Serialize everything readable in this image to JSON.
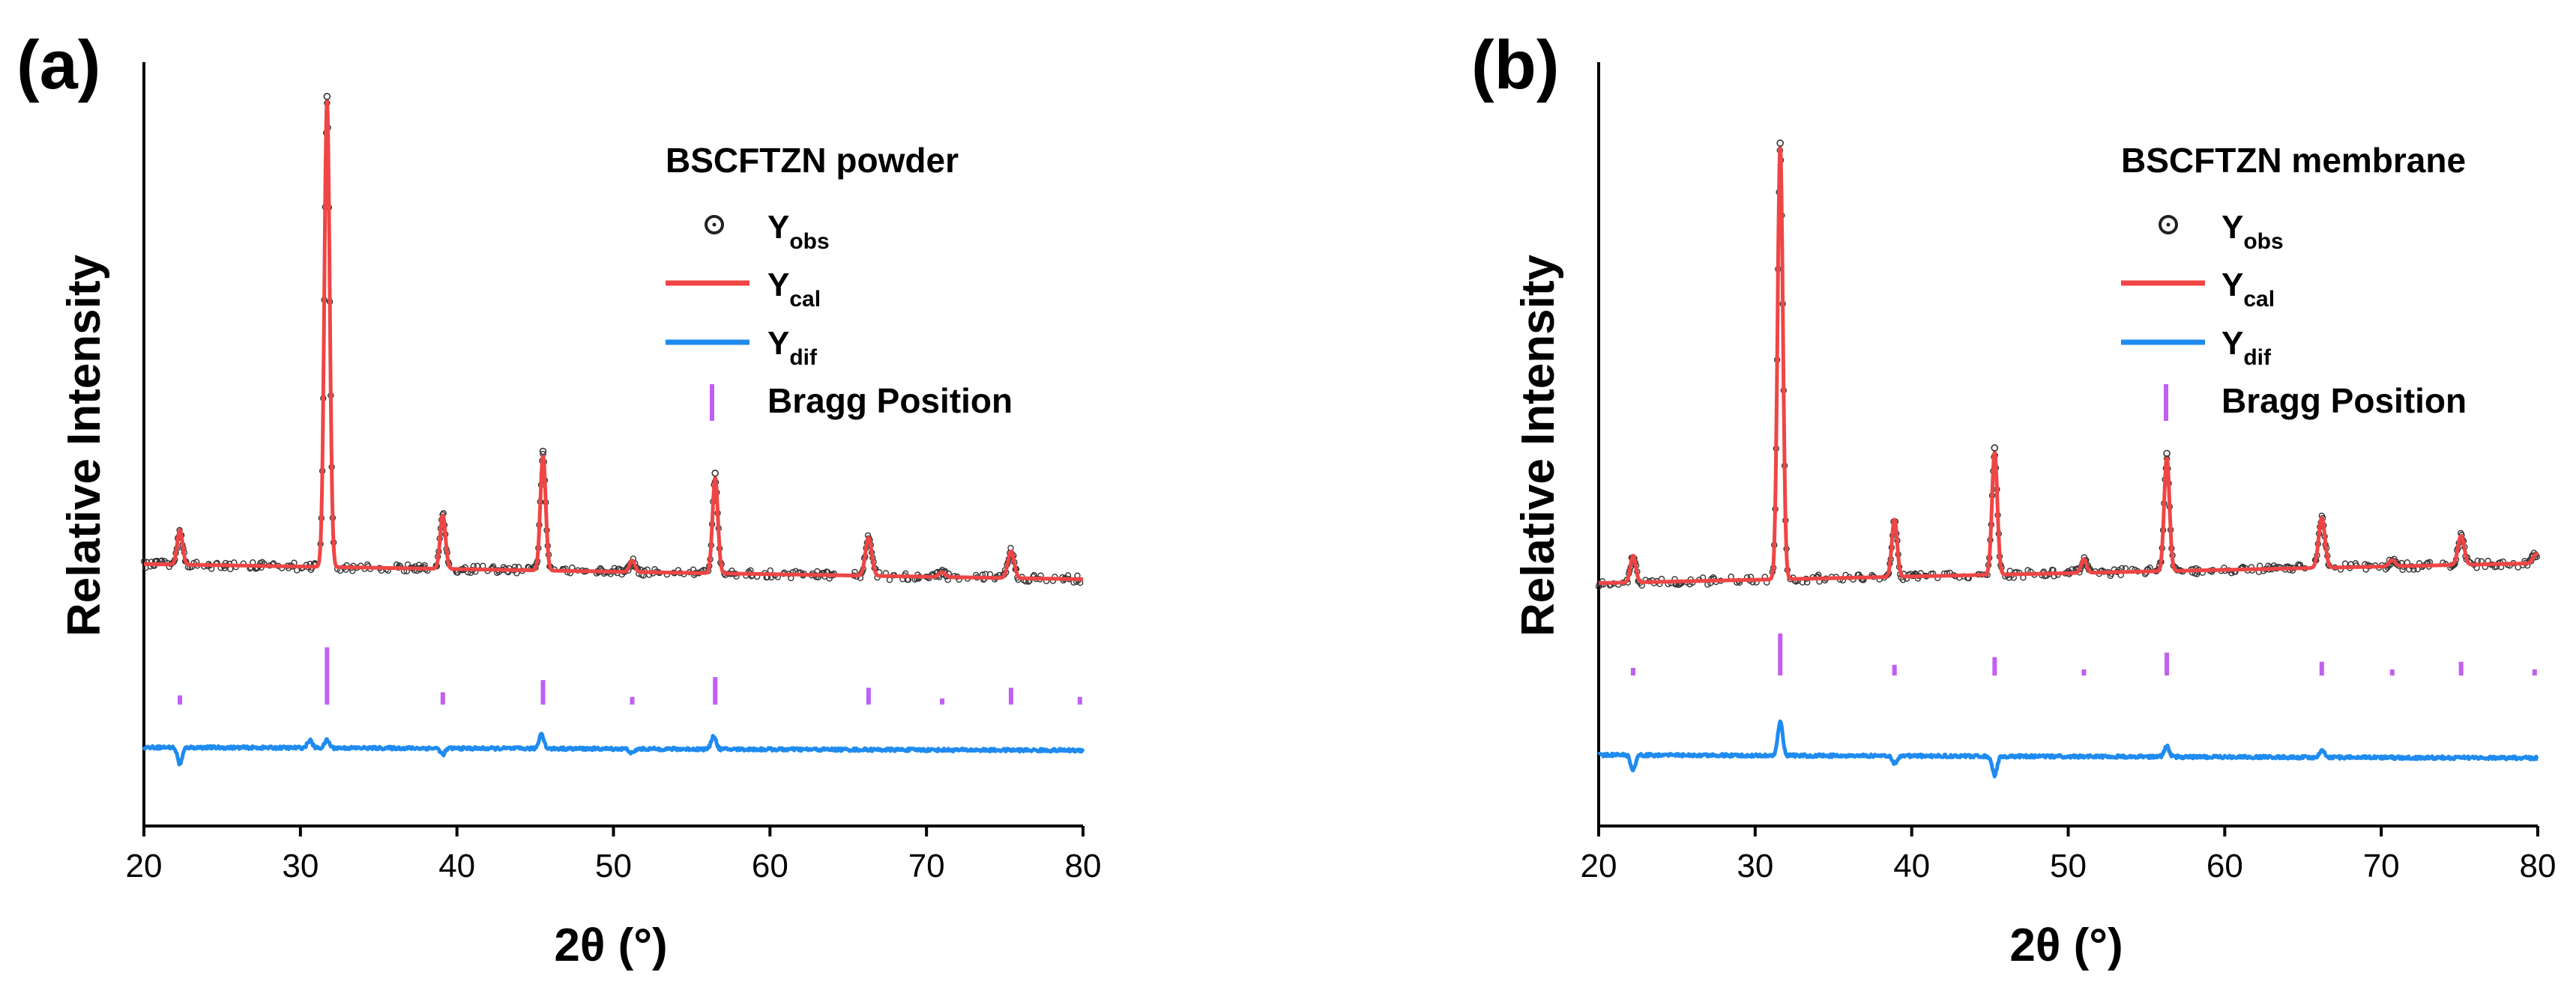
{
  "chart_data": [
    {
      "type": "line",
      "panel_label": "(a)",
      "title": "BSCFTZN powder",
      "xlabel": "2θ (°)",
      "ylabel": "Relative Intensity",
      "xlim": [
        20,
        80
      ],
      "ylim": [
        0,
        1
      ],
      "xticks": [
        "20",
        "30",
        "40",
        "50",
        "60",
        "70",
        "80"
      ],
      "grid": false,
      "legend_position": "top-right",
      "legend": [
        {
          "base": "Y",
          "sub": "obs",
          "marker": "open-circle",
          "color": "#222222"
        },
        {
          "base": "Y",
          "sub": "cal",
          "marker": "line",
          "color": "#f04545"
        },
        {
          "base": "Y",
          "sub": "dif",
          "marker": "line",
          "color": "#1f8bf0"
        },
        {
          "label": "Bragg Position",
          "marker": "tick",
          "color": "#c060f0"
        }
      ],
      "background": {
        "start": 0.343,
        "end": 0.323
      },
      "peaks": [
        {
          "x": 22.3,
          "height": 0.045,
          "width": 0.17
        },
        {
          "x": 31.7,
          "height": 0.61,
          "width": 0.17
        },
        {
          "x": 39.1,
          "height": 0.07,
          "width": 0.17
        },
        {
          "x": 45.5,
          "height": 0.15,
          "width": 0.17
        },
        {
          "x": 51.2,
          "height": 0.015,
          "width": 0.17
        },
        {
          "x": 56.5,
          "height": 0.125,
          "width": 0.17
        },
        {
          "x": 66.3,
          "height": 0.05,
          "width": 0.2
        },
        {
          "x": 71.0,
          "height": 0.006,
          "width": 0.2
        },
        {
          "x": 75.4,
          "height": 0.035,
          "width": 0.2
        }
      ],
      "bragg_positions": [
        {
          "x": 22.3,
          "size": 0.012
        },
        {
          "x": 31.7,
          "size": 0.075
        },
        {
          "x": 39.1,
          "size": 0.016
        },
        {
          "x": 45.5,
          "size": 0.032
        },
        {
          "x": 51.2,
          "size": 0.01
        },
        {
          "x": 56.5,
          "size": 0.036
        },
        {
          "x": 66.3,
          "size": 0.022
        },
        {
          "x": 71.0,
          "size": 0.008
        },
        {
          "x": 75.4,
          "size": 0.022
        },
        {
          "x": 79.8,
          "size": 0.01
        }
      ],
      "bragg_baseline": 0.159,
      "difference": {
        "baseline": 0.103,
        "features": [
          {
            "x": 22.3,
            "amp": -0.022
          },
          {
            "x": 30.6,
            "amp": 0.01
          },
          {
            "x": 31.7,
            "amp": 0.01
          },
          {
            "x": 39.1,
            "amp": -0.008
          },
          {
            "x": 45.4,
            "amp": 0.02
          },
          {
            "x": 51.2,
            "amp": -0.006
          },
          {
            "x": 56.4,
            "amp": 0.018
          }
        ]
      }
    },
    {
      "type": "line",
      "panel_label": "(b)",
      "title": "BSCFTZN membrane",
      "xlabel": "2θ (°)",
      "ylabel": "Relative Intensity",
      "xlim": [
        20,
        80
      ],
      "ylim": [
        0,
        1
      ],
      "xticks": [
        "20",
        "30",
        "40",
        "50",
        "60",
        "70",
        "80"
      ],
      "grid": false,
      "legend_position": "top-right",
      "legend": [
        {
          "base": "Y",
          "sub": "obs",
          "marker": "open-circle",
          "color": "#222222"
        },
        {
          "base": "Y",
          "sub": "cal",
          "marker": "line",
          "color": "#f04545"
        },
        {
          "base": "Y",
          "sub": "dif",
          "marker": "line",
          "color": "#1f8bf0"
        },
        {
          "label": "Bragg Position",
          "marker": "tick",
          "color": "#c060f0"
        }
      ],
      "background": {
        "start": 0.318,
        "end": 0.344
      },
      "peaks": [
        {
          "x": 22.2,
          "height": 0.035,
          "width": 0.17
        },
        {
          "x": 31.6,
          "height": 0.565,
          "width": 0.17
        },
        {
          "x": 38.9,
          "height": 0.075,
          "width": 0.17
        },
        {
          "x": 45.3,
          "height": 0.16,
          "width": 0.17
        },
        {
          "x": 51.0,
          "height": 0.018,
          "width": 0.17
        },
        {
          "x": 56.3,
          "height": 0.148,
          "width": 0.17
        },
        {
          "x": 66.2,
          "height": 0.065,
          "width": 0.2
        },
        {
          "x": 70.7,
          "height": 0.008,
          "width": 0.2
        },
        {
          "x": 75.1,
          "height": 0.038,
          "width": 0.2
        },
        {
          "x": 79.9,
          "height": 0.012,
          "width": 0.2
        }
      ],
      "bragg_positions": [
        {
          "x": 22.2,
          "size": 0.01
        },
        {
          "x": 31.6,
          "size": 0.055
        },
        {
          "x": 38.9,
          "size": 0.014
        },
        {
          "x": 45.3,
          "size": 0.024
        },
        {
          "x": 51.0,
          "size": 0.008
        },
        {
          "x": 56.3,
          "size": 0.03
        },
        {
          "x": 66.2,
          "size": 0.018
        },
        {
          "x": 70.7,
          "size": 0.008
        },
        {
          "x": 75.1,
          "size": 0.018
        },
        {
          "x": 79.8,
          "size": 0.008
        }
      ],
      "bragg_baseline": 0.197,
      "difference": {
        "baseline": 0.093,
        "features": [
          {
            "x": 22.2,
            "amp": -0.02
          },
          {
            "x": 31.6,
            "amp": 0.045
          },
          {
            "x": 38.9,
            "amp": -0.01
          },
          {
            "x": 45.3,
            "amp": -0.025
          },
          {
            "x": 56.3,
            "amp": 0.014
          },
          {
            "x": 66.2,
            "amp": 0.01
          }
        ]
      }
    }
  ]
}
